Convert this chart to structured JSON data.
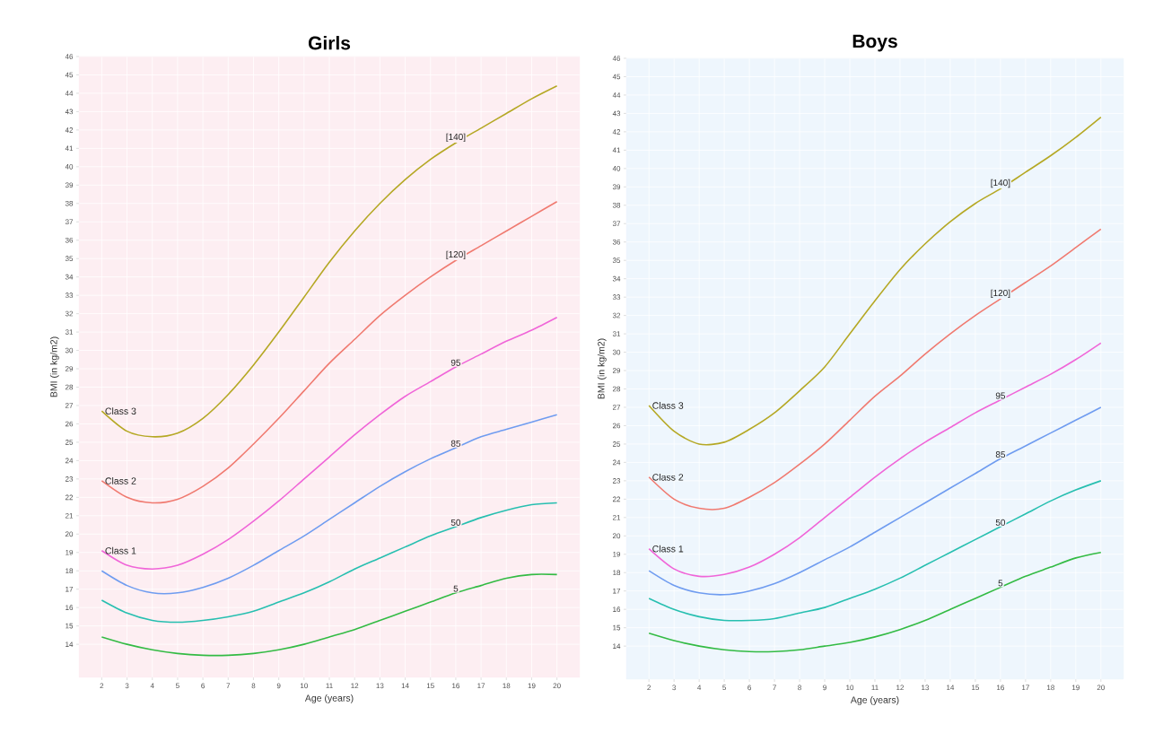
{
  "chart_data": [
    {
      "type": "line",
      "title": "Girls",
      "xlabel": "Age (years)",
      "ylabel": "BMI (in kg/m2)",
      "x": [
        2,
        3,
        4,
        5,
        6,
        7,
        8,
        9,
        10,
        11,
        12,
        13,
        14,
        15,
        16,
        17,
        18,
        19,
        20
      ],
      "series": [
        {
          "name": "[140]",
          "color": "#b5a824",
          "values": [
            26.7,
            25.6,
            25.3,
            25.5,
            26.3,
            27.6,
            29.2,
            31.0,
            32.9,
            34.8,
            36.5,
            38.0,
            39.3,
            40.4,
            41.3,
            42.1,
            42.9,
            43.7,
            44.4
          ]
        },
        {
          "name": "[120]",
          "color": "#f07a70",
          "values": [
            22.9,
            22.0,
            21.7,
            21.9,
            22.6,
            23.6,
            24.9,
            26.3,
            27.8,
            29.3,
            30.6,
            31.9,
            33.0,
            34.0,
            34.9,
            35.7,
            36.5,
            37.3,
            38.1
          ]
        },
        {
          "name": "95",
          "color": "#f065d8",
          "values": [
            19.1,
            18.3,
            18.1,
            18.3,
            18.9,
            19.7,
            20.7,
            21.8,
            23.0,
            24.2,
            25.4,
            26.5,
            27.5,
            28.3,
            29.1,
            29.8,
            30.5,
            31.1,
            31.8
          ]
        },
        {
          "name": "85",
          "color": "#6f9cf0",
          "values": [
            18.0,
            17.2,
            16.8,
            16.8,
            17.1,
            17.6,
            18.3,
            19.1,
            19.9,
            20.8,
            21.7,
            22.6,
            23.4,
            24.1,
            24.7,
            25.3,
            25.7,
            26.1,
            26.5
          ]
        },
        {
          "name": "50",
          "color": "#27bfb0",
          "values": [
            16.4,
            15.7,
            15.3,
            15.2,
            15.3,
            15.5,
            15.8,
            16.3,
            16.8,
            17.4,
            18.1,
            18.7,
            19.3,
            19.9,
            20.4,
            20.9,
            21.3,
            21.6,
            21.7
          ]
        },
        {
          "name": "5",
          "color": "#33bb44",
          "values": [
            14.4,
            14.0,
            13.7,
            13.5,
            13.4,
            13.4,
            13.5,
            13.7,
            14.0,
            14.4,
            14.8,
            15.3,
            15.8,
            16.3,
            16.8,
            17.2,
            17.6,
            17.8,
            17.8
          ]
        }
      ],
      "annotations": [
        "Class 3",
        "Class 2",
        "Class 1"
      ],
      "xlim": [
        1.1,
        20.9
      ],
      "ylim": [
        12.2,
        46
      ],
      "xticks": [
        2,
        3,
        4,
        5,
        6,
        7,
        8,
        9,
        10,
        11,
        12,
        13,
        14,
        15,
        16,
        17,
        18,
        19,
        20
      ],
      "yticks": [
        14,
        15,
        16,
        17,
        18,
        19,
        20,
        21,
        22,
        23,
        24,
        25,
        26,
        27,
        28,
        29,
        30,
        31,
        32,
        33,
        34,
        35,
        36,
        37,
        38,
        39,
        40,
        41,
        42,
        43,
        44,
        45,
        46
      ],
      "grid": true
    },
    {
      "type": "line",
      "title": "Boys",
      "xlabel": "Age (years)",
      "ylabel": "BMI (in kg/m2)",
      "x": [
        2,
        3,
        4,
        5,
        6,
        7,
        8,
        9,
        10,
        11,
        12,
        13,
        14,
        15,
        16,
        17,
        18,
        19,
        20
      ],
      "series": [
        {
          "name": "[140]",
          "color": "#b5a824",
          "values": [
            27.1,
            25.7,
            25.0,
            25.1,
            25.8,
            26.7,
            27.9,
            29.2,
            31.0,
            32.8,
            34.5,
            35.9,
            37.1,
            38.1,
            38.9,
            39.8,
            40.7,
            41.7,
            42.8
          ]
        },
        {
          "name": "[120]",
          "color": "#f07a70",
          "values": [
            23.2,
            22.0,
            21.5,
            21.5,
            22.1,
            22.9,
            23.9,
            25.0,
            26.3,
            27.6,
            28.7,
            29.9,
            31.0,
            32.0,
            32.9,
            33.8,
            34.7,
            35.7,
            36.7
          ]
        },
        {
          "name": "95",
          "color": "#f065d8",
          "values": [
            19.3,
            18.2,
            17.8,
            17.9,
            18.3,
            19.0,
            19.9,
            21.0,
            22.1,
            23.2,
            24.2,
            25.1,
            25.9,
            26.7,
            27.4,
            28.1,
            28.8,
            29.6,
            30.5
          ]
        },
        {
          "name": "85",
          "color": "#6f9cf0",
          "values": [
            18.1,
            17.3,
            16.9,
            16.8,
            17.0,
            17.4,
            18.0,
            18.7,
            19.4,
            20.2,
            21.0,
            21.8,
            22.6,
            23.4,
            24.2,
            24.9,
            25.6,
            26.3,
            27.0
          ]
        },
        {
          "name": "50",
          "color": "#27bfb0",
          "values": [
            16.6,
            16.0,
            15.6,
            15.4,
            15.4,
            15.5,
            15.8,
            16.1,
            16.6,
            17.1,
            17.7,
            18.4,
            19.1,
            19.8,
            20.5,
            21.2,
            21.9,
            22.5,
            23.0
          ]
        },
        {
          "name": "5",
          "color": "#33bb44",
          "values": [
            14.7,
            14.3,
            14.0,
            13.8,
            13.7,
            13.7,
            13.8,
            14.0,
            14.2,
            14.5,
            14.9,
            15.4,
            16.0,
            16.6,
            17.2,
            17.8,
            18.3,
            18.8,
            19.1
          ]
        }
      ],
      "annotations": [
        "Class 3",
        "Class 2",
        "Class 1"
      ],
      "xlim": [
        1.1,
        20.9
      ],
      "ylim": [
        12.2,
        46
      ],
      "xticks": [
        2,
        3,
        4,
        5,
        6,
        7,
        8,
        9,
        10,
        11,
        12,
        13,
        14,
        15,
        16,
        17,
        18,
        19,
        20
      ],
      "yticks": [
        14,
        15,
        16,
        17,
        18,
        19,
        20,
        21,
        22,
        23,
        24,
        25,
        26,
        27,
        28,
        29,
        30,
        31,
        32,
        33,
        34,
        35,
        36,
        37,
        38,
        39,
        40,
        41,
        42,
        43,
        44,
        45,
        46
      ],
      "grid": true
    }
  ]
}
